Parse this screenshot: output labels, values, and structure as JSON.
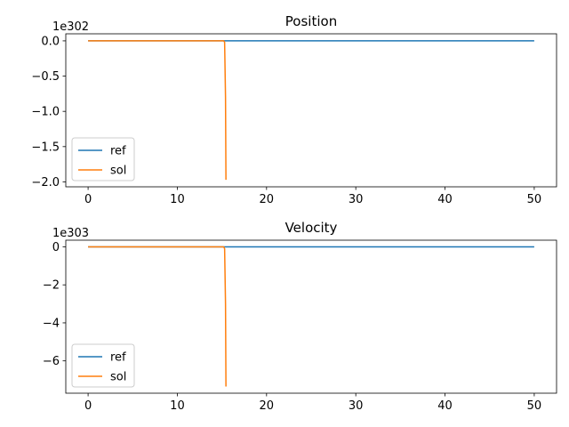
{
  "chart_data": [
    {
      "type": "line",
      "title": "Position",
      "xlabel": "",
      "ylabel": "",
      "offset_label": "1e302",
      "xlim": [
        -2.5,
        52.5
      ],
      "ylim": [
        -2.07,
        0.1
      ],
      "xticks": [
        0,
        10,
        20,
        30,
        40,
        50
      ],
      "xtick_labels": [
        "0",
        "10",
        "20",
        "30",
        "40",
        "50"
      ],
      "yticks": [
        0.0,
        -0.5,
        -1.0,
        -1.5,
        -2.0
      ],
      "ytick_labels": [
        "0.0",
        "−0.5",
        "−1.0",
        "−1.5",
        "−2.0"
      ],
      "grid": false,
      "legend_position": "lower-left",
      "series": [
        {
          "name": "ref",
          "color": "#1f77b4",
          "x": [
            0,
            50
          ],
          "y": [
            0,
            0
          ]
        },
        {
          "name": "sol",
          "color": "#ff7f0e",
          "x": [
            0,
            15.2,
            15.3,
            15.4,
            15.45
          ],
          "y": [
            0,
            0,
            -0.02,
            -0.8,
            -1.97
          ]
        }
      ]
    },
    {
      "type": "line",
      "title": "Velocity",
      "xlabel": "",
      "ylabel": "",
      "offset_label": "1e303",
      "xlim": [
        -2.5,
        52.5
      ],
      "ylim": [
        -7.7,
        0.35
      ],
      "xticks": [
        0,
        10,
        20,
        30,
        40,
        50
      ],
      "xtick_labels": [
        "0",
        "10",
        "20",
        "30",
        "40",
        "50"
      ],
      "yticks": [
        0,
        -2,
        -4,
        -6
      ],
      "ytick_labels": [
        "0",
        "−2",
        "−4",
        "−6"
      ],
      "grid": false,
      "legend_position": "lower-left",
      "series": [
        {
          "name": "ref",
          "color": "#1f77b4",
          "x": [
            0,
            50
          ],
          "y": [
            0,
            0
          ]
        },
        {
          "name": "sol",
          "color": "#ff7f0e",
          "x": [
            0,
            15.2,
            15.3,
            15.4,
            15.45
          ],
          "y": [
            0,
            0,
            -0.1,
            -3.0,
            -7.35
          ]
        }
      ]
    }
  ]
}
